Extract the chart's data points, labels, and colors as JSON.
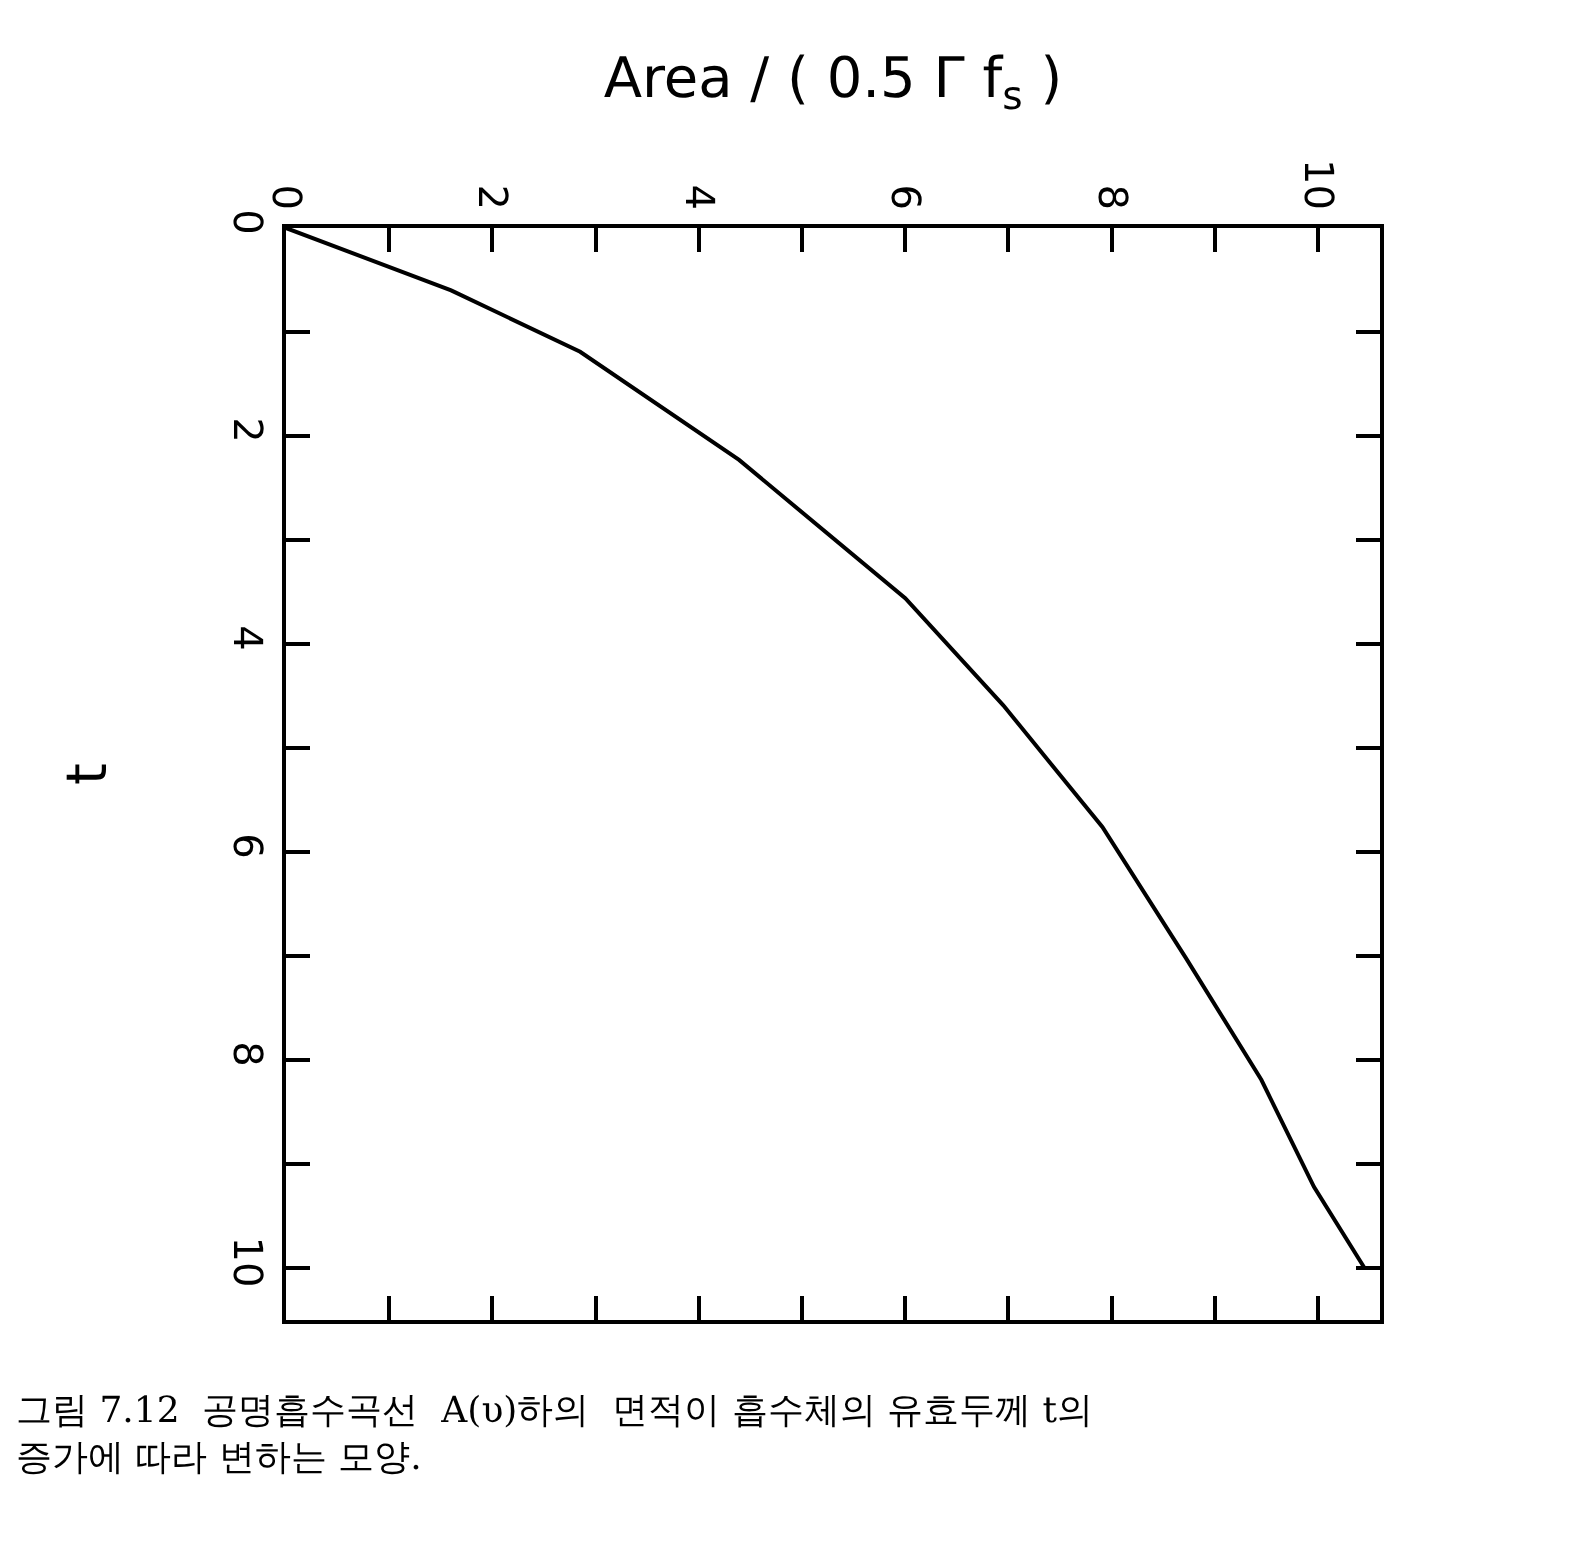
{
  "chart_data": {
    "type": "line",
    "xlabel": "Area / ( 0.5 Γ f$_{s}$ )",
    "ylabel": "t",
    "x": [
      0,
      1.6,
      2.85,
      4.39,
      6.0,
      6.95,
      7.91,
      8.72,
      9.45,
      9.96,
      10.45
    ],
    "series": [
      {
        "color": "#000000",
        "values": [
          0,
          0.6,
          1.19,
          2.23,
          3.56,
          4.59,
          5.76,
          7.02,
          8.19,
          9.22,
          10.0
        ]
      }
    ],
    "xlim": [
      0,
      10.6
    ],
    "ylim": [
      10.5,
      0
    ],
    "xticks": [
      0,
      {
        "value": 1,
        "label": null
      },
      2,
      {
        "value": 3,
        "label": null
      },
      4,
      {
        "value": 5,
        "label": null
      },
      6,
      {
        "value": 7,
        "label": null
      },
      8,
      {
        "value": 9,
        "label": null
      },
      10
    ],
    "yticks": [
      0,
      {
        "value": 1,
        "label": null
      },
      2,
      {
        "value": 3,
        "label": null
      },
      4,
      {
        "value": 5,
        "label": null
      },
      6,
      {
        "value": 7,
        "label": null
      },
      8,
      {
        "value": 9,
        "label": null
      },
      10
    ],
    "marker": "none",
    "line_style": "solid",
    "annotations": [
      "그림 7.12  공명흡수곡선  A(υ)하의  면적이 흡수체의 유효두께 t의 증가에 따라 변하는 모양."
    ]
  }
}
